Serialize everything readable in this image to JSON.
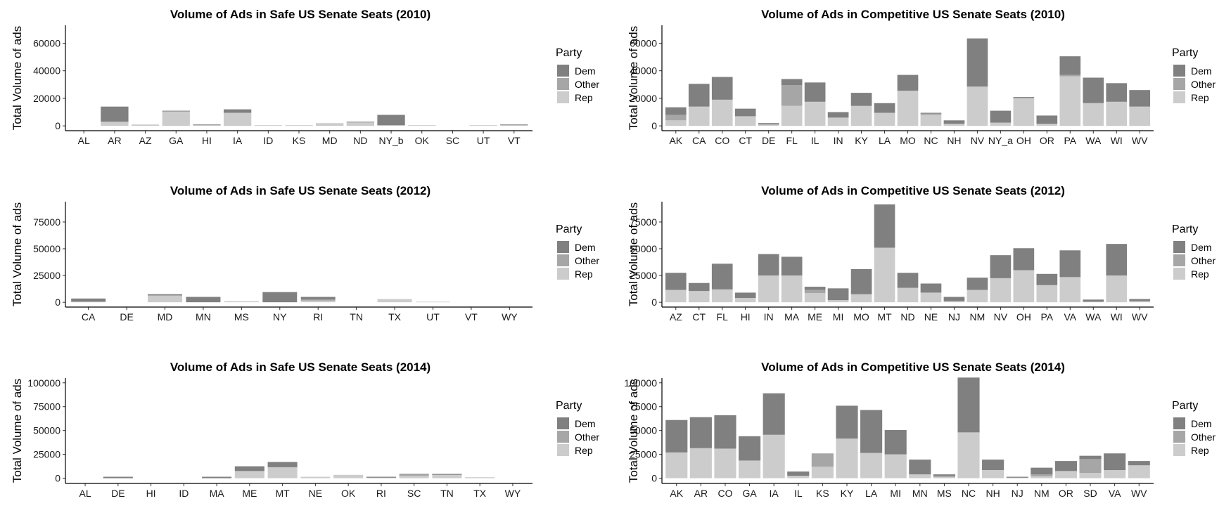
{
  "colors": {
    "Dem": "#808080",
    "Other": "#a6a6a6",
    "Rep": "#cccccc"
  },
  "chart_data": [
    {
      "type": "bar",
      "title": "Volume of Ads in Safe US Senate Seats (2010)",
      "ylabel": "Total Volume of ads",
      "xlabel": "",
      "ylim": [
        -3500,
        73000
      ],
      "yticks": [
        0,
        20000,
        40000,
        60000
      ],
      "legend_title": "Party",
      "legend": [
        "Dem",
        "Other",
        "Rep"
      ],
      "categories": [
        "AL",
        "AR",
        "AZ",
        "GA",
        "HI",
        "IA",
        "ID",
        "KS",
        "MD",
        "ND",
        "NY_b",
        "OK",
        "SC",
        "UT",
        "VT"
      ],
      "series": [
        {
          "name": "Rep",
          "values": [
            0,
            3000,
            1000,
            10500,
            500,
            9500,
            500,
            500,
            2000,
            2500,
            500,
            500,
            0,
            500,
            500
          ]
        },
        {
          "name": "Other",
          "values": [
            0,
            0,
            0,
            0,
            0,
            0,
            0,
            0,
            0,
            0,
            0,
            0,
            0,
            0,
            0
          ]
        },
        {
          "name": "Dem",
          "values": [
            0,
            11000,
            0,
            500,
            500,
            2500,
            0,
            0,
            0,
            500,
            7500,
            0,
            0,
            0,
            500
          ]
        }
      ]
    },
    {
      "type": "bar",
      "title": "Volume of Ads in Competitive US Senate Seats (2010)",
      "ylabel": "Total Volume of ads",
      "xlabel": "",
      "ylim": [
        -3500,
        73000
      ],
      "yticks": [
        0,
        20000,
        40000,
        60000
      ],
      "legend_title": "Party",
      "legend": [
        "Dem",
        "Other",
        "Rep"
      ],
      "categories": [
        "AK",
        "CA",
        "CO",
        "CT",
        "DE",
        "FL",
        "IL",
        "IN",
        "KY",
        "LA",
        "MO",
        "NC",
        "NH",
        "NV",
        "NY_a",
        "OH",
        "OR",
        "PA",
        "WA",
        "WI",
        "WV"
      ],
      "series": [
        {
          "name": "Rep",
          "values": [
            4000,
            14000,
            19000,
            7000,
            1000,
            14500,
            17500,
            6000,
            14500,
            9500,
            25500,
            8000,
            1500,
            28500,
            2000,
            20000,
            1500,
            36000,
            16500,
            17500,
            14000
          ]
        },
        {
          "name": "Other",
          "values": [
            4000,
            0,
            0,
            0,
            0,
            15000,
            0,
            0,
            0,
            0,
            0,
            1000,
            0,
            0,
            500,
            500,
            0,
            1000,
            0,
            0,
            0
          ]
        },
        {
          "name": "Dem",
          "values": [
            5500,
            16500,
            16500,
            5500,
            1000,
            4500,
            14000,
            4000,
            9500,
            7000,
            11500,
            500,
            2500,
            35000,
            8500,
            500,
            6000,
            13500,
            18500,
            13500,
            12000
          ]
        }
      ]
    },
    {
      "type": "bar",
      "title": "Volume of Ads in Safe US Senate Seats (2012)",
      "ylabel": "Total Volume of ads",
      "xlabel": "",
      "ylim": [
        -4500,
        94000
      ],
      "yticks": [
        0,
        25000,
        50000,
        75000
      ],
      "legend_title": "Party",
      "legend": [
        "Dem",
        "Other",
        "Rep"
      ],
      "categories": [
        "CA",
        "DE",
        "MD",
        "MN",
        "MS",
        "NY",
        "RI",
        "TN",
        "TX",
        "UT",
        "VT",
        "WY"
      ],
      "series": [
        {
          "name": "Rep",
          "values": [
            500,
            0,
            6000,
            0,
            1000,
            0,
            1500,
            0,
            3000,
            500,
            0,
            0
          ]
        },
        {
          "name": "Other",
          "values": [
            0,
            0,
            500,
            0,
            0,
            0,
            1000,
            0,
            0,
            0,
            0,
            0
          ]
        },
        {
          "name": "Dem",
          "values": [
            3000,
            0,
            1000,
            5000,
            0,
            9500,
            2500,
            0,
            0,
            0,
            0,
            0
          ]
        }
      ]
    },
    {
      "type": "bar",
      "title": "Volume of Ads in Competitive US Senate Seats (2012)",
      "ylabel": "Total Volume of ads",
      "xlabel": "",
      "ylim": [
        -4500,
        94000
      ],
      "yticks": [
        0,
        25000,
        50000,
        75000
      ],
      "legend_title": "Party",
      "legend": [
        "Dem",
        "Other",
        "Rep"
      ],
      "categories": [
        "AZ",
        "CT",
        "FL",
        "HI",
        "IN",
        "MA",
        "ME",
        "MI",
        "MO",
        "MT",
        "ND",
        "NE",
        "NJ",
        "NM",
        "NV",
        "OH",
        "PA",
        "VA",
        "WA",
        "WI",
        "WV"
      ],
      "series": [
        {
          "name": "Rep",
          "values": [
            11500,
            10500,
            12000,
            4000,
            25000,
            25000,
            8500,
            2000,
            7500,
            51000,
            13500,
            9000,
            1000,
            11500,
            22500,
            30000,
            16000,
            23500,
            500,
            25000,
            1000
          ]
        },
        {
          "name": "Other",
          "values": [
            0,
            0,
            0,
            0,
            0,
            0,
            3000,
            0,
            0,
            0,
            0,
            0,
            0,
            0,
            0,
            0,
            0,
            0,
            0,
            0,
            0
          ]
        },
        {
          "name": "Dem",
          "values": [
            16000,
            7500,
            24000,
            5000,
            20000,
            17500,
            3000,
            11000,
            23500,
            40500,
            14000,
            8500,
            4000,
            11500,
            21500,
            20500,
            10500,
            25000,
            2000,
            29500,
            2000
          ]
        }
      ]
    },
    {
      "type": "bar",
      "title": "Volume of Ads in Safe US Senate Seats (2014)",
      "ylabel": "Total Volume of ads",
      "xlabel": "",
      "ylim": [
        -5500,
        105000
      ],
      "yticks": [
        0,
        25000,
        50000,
        75000,
        100000
      ],
      "legend_title": "Party",
      "legend": [
        "Dem",
        "Other",
        "Rep"
      ],
      "categories": [
        "AL",
        "DE",
        "HI",
        "ID",
        "MA",
        "ME",
        "MT",
        "NE",
        "OK",
        "RI",
        "SC",
        "TN",
        "TX",
        "WY"
      ],
      "series": [
        {
          "name": "Rep",
          "values": [
            0,
            0,
            0,
            0,
            0,
            7500,
            11500,
            1500,
            3500,
            500,
            2500,
            3500,
            1000,
            0
          ]
        },
        {
          "name": "Other",
          "values": [
            0,
            0,
            0,
            0,
            0,
            0,
            0,
            0,
            0,
            0,
            1500,
            0,
            0,
            0
          ]
        },
        {
          "name": "Dem",
          "values": [
            0,
            1500,
            0,
            0,
            1500,
            5000,
            5500,
            0,
            0,
            1000,
            500,
            1000,
            0,
            0
          ]
        }
      ]
    },
    {
      "type": "bar",
      "title": "Volume of Ads in Competitive US Senate Seats (2014)",
      "ylabel": "Total Volume of ads",
      "xlabel": "",
      "ylim": [
        -5500,
        105000
      ],
      "yticks": [
        0,
        25000,
        50000,
        75000,
        100000
      ],
      "legend_title": "Party",
      "legend": [
        "Dem",
        "Other",
        "Rep"
      ],
      "categories": [
        "AK",
        "AR",
        "CO",
        "GA",
        "IA",
        "IL",
        "KS",
        "KY",
        "LA",
        "MI",
        "MN",
        "MS",
        "NC",
        "NH",
        "NJ",
        "NM",
        "OR",
        "SD",
        "VA",
        "WV"
      ],
      "series": [
        {
          "name": "Rep",
          "values": [
            27000,
            31500,
            31000,
            18500,
            45500,
            2500,
            12000,
            41500,
            26500,
            25000,
            4000,
            1000,
            48000,
            8500,
            500,
            2000,
            7500,
            5500,
            8500,
            13500
          ]
        },
        {
          "name": "Other",
          "values": [
            0,
            0,
            0,
            0,
            0,
            0,
            14000,
            0,
            0,
            0,
            0,
            1500,
            0,
            0,
            0,
            2000,
            0,
            14500,
            0,
            0
          ]
        },
        {
          "name": "Dem",
          "values": [
            34000,
            32500,
            35000,
            25500,
            43500,
            4500,
            0,
            34500,
            45000,
            25500,
            15500,
            1500,
            57500,
            11000,
            1000,
            7000,
            10500,
            3500,
            17500,
            4500
          ]
        }
      ]
    }
  ]
}
